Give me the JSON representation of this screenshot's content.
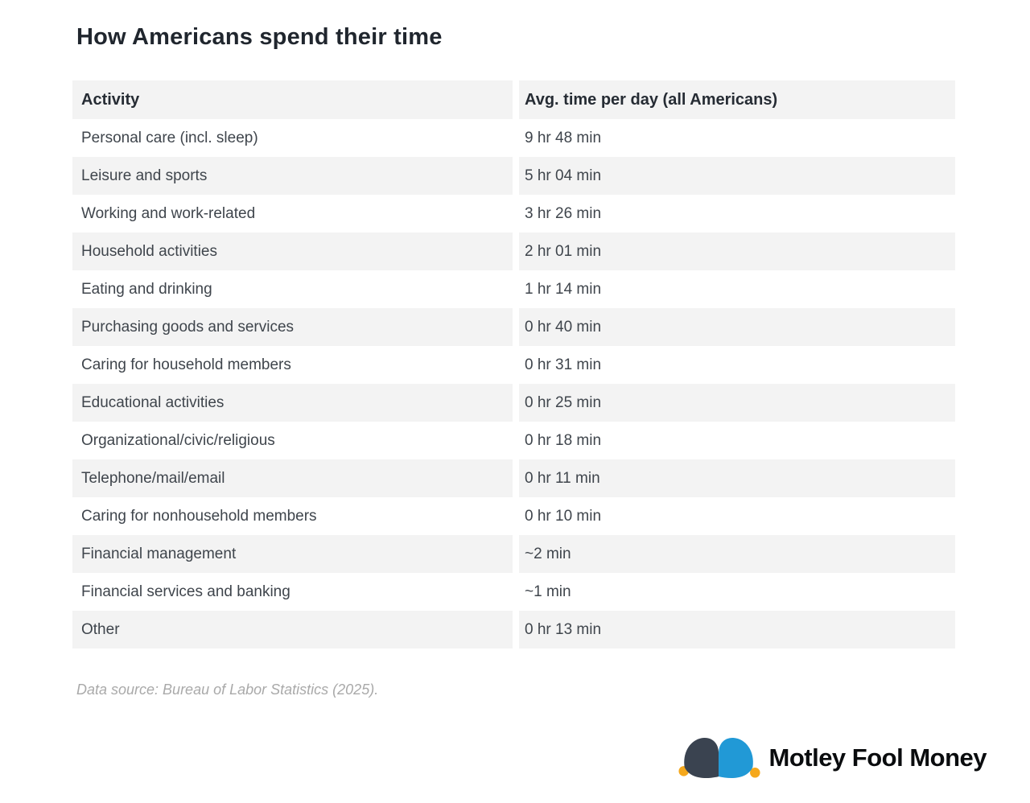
{
  "page": {
    "title": "How Americans spend their time"
  },
  "table": {
    "headers": [
      "Activity",
      "Avg. time per day (all Americans)"
    ],
    "rows": [
      {
        "activity": "Personal care (incl. sleep)",
        "time": "9 hr 48 min"
      },
      {
        "activity": "Leisure and sports",
        "time": "5 hr 04 min"
      },
      {
        "activity": "Working and work-related",
        "time": "3 hr 26 min"
      },
      {
        "activity": "Household activities",
        "time": "2 hr 01 min"
      },
      {
        "activity": "Eating and drinking",
        "time": "1 hr 14 min"
      },
      {
        "activity": "Purchasing goods and services",
        "time": "0 hr 40 min"
      },
      {
        "activity": "Caring for household members",
        "time": "0 hr 31 min"
      },
      {
        "activity": "Educational activities",
        "time": "0 hr 25 min"
      },
      {
        "activity": "Organizational/civic/religious",
        "time": "0 hr 18 min"
      },
      {
        "activity": "Telephone/mail/email",
        "time": "0 hr 11 min"
      },
      {
        "activity": "Caring for nonhousehold members",
        "time": "0 hr 10 min"
      },
      {
        "activity": "Financial management",
        "time": "~2 min"
      },
      {
        "activity": "Financial services and banking",
        "time": "~1 min"
      },
      {
        "activity": "Other",
        "time": "0 hr 13 min"
      }
    ]
  },
  "footer": {
    "source": "Data source: Bureau of Labor Statistics (2025)."
  },
  "branding": {
    "logo_text": "Motley Fool Money",
    "hat_dark": "#3a4350",
    "hat_blue": "#2199d6",
    "bell_gold": "#f5a81c"
  },
  "colors": {
    "row_stripe": "#f3f3f3",
    "body_text": "#3f454c",
    "title_text": "#20262e",
    "source_text": "#a9a9a9"
  },
  "chart_data": {
    "type": "table",
    "title": "How Americans spend their time",
    "columns": [
      "Activity",
      "Avg. time per day (all Americans)"
    ],
    "rows": [
      [
        "Personal care (incl. sleep)",
        "9 hr 48 min"
      ],
      [
        "Leisure and sports",
        "5 hr 04 min"
      ],
      [
        "Working and work-related",
        "3 hr 26 min"
      ],
      [
        "Household activities",
        "2 hr 01 min"
      ],
      [
        "Eating and drinking",
        "1 hr 14 min"
      ],
      [
        "Purchasing goods and services",
        "0 hr 40 min"
      ],
      [
        "Caring for household members",
        "0 hr 31 min"
      ],
      [
        "Educational activities",
        "0 hr 25 min"
      ],
      [
        "Organizational/civic/religious",
        "0 hr 18 min"
      ],
      [
        "Telephone/mail/email",
        "0 hr 11 min"
      ],
      [
        "Caring for nonhousehold members",
        "0 hr 10 min"
      ],
      [
        "Financial management",
        "~2 min"
      ],
      [
        "Financial services and banking",
        "~1 min"
      ],
      [
        "Other",
        "0 hr 13 min"
      ]
    ],
    "values_minutes": [
      588,
      304,
      206,
      121,
      74,
      40,
      31,
      25,
      18,
      11,
      10,
      2,
      1,
      13
    ],
    "source": "Data source: Bureau of Labor Statistics (2025)."
  }
}
